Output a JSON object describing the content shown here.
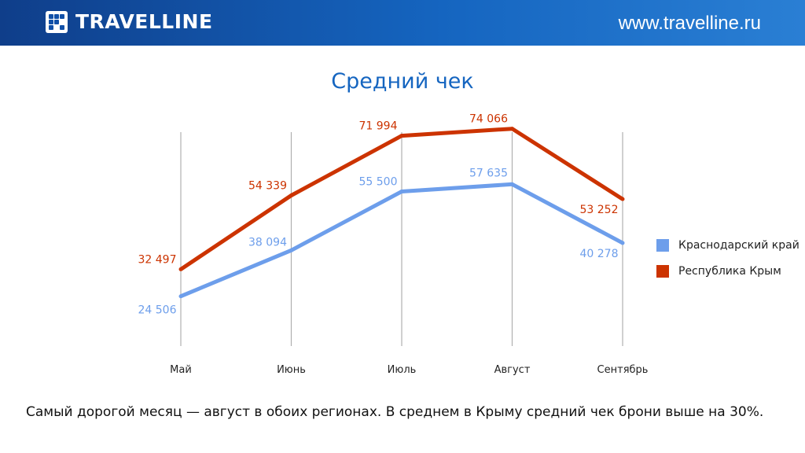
{
  "header": {
    "brand": "TRAVELLINE",
    "url": "www.travelline.ru"
  },
  "colors": {
    "header_blue": "#1565c0",
    "series_light_blue": "#6d9eeb",
    "series_red": "#cc3300",
    "grid": "#b0b0b0"
  },
  "chart_data": {
    "type": "line",
    "title": "Средний чек",
    "categories": [
      "Май",
      "Июнь",
      "Июль",
      "Август",
      "Сентябрь"
    ],
    "series": [
      {
        "name": "Краснодарский край",
        "color": "#6d9eeb",
        "values": [
          24506,
          38094,
          55500,
          57635,
          40278
        ],
        "labels": [
          "24 506",
          "38 094",
          "55 500",
          "57 635",
          "40 278"
        ]
      },
      {
        "name": "Республика Крым",
        "color": "#cc3300",
        "values": [
          32497,
          54339,
          71994,
          74066,
          53252
        ],
        "labels": [
          "32 497",
          "54 339",
          "71 994",
          "74 066",
          "53 252"
        ]
      }
    ],
    "xlabel": "",
    "ylabel": "",
    "ylim": [
      0,
      80000
    ],
    "grid": "vertical",
    "legend_position": "right"
  },
  "footnote": "Самый дорогой месяц — август в обоих регионах. В среднем в Крыму средний чек брони выше на 30%."
}
